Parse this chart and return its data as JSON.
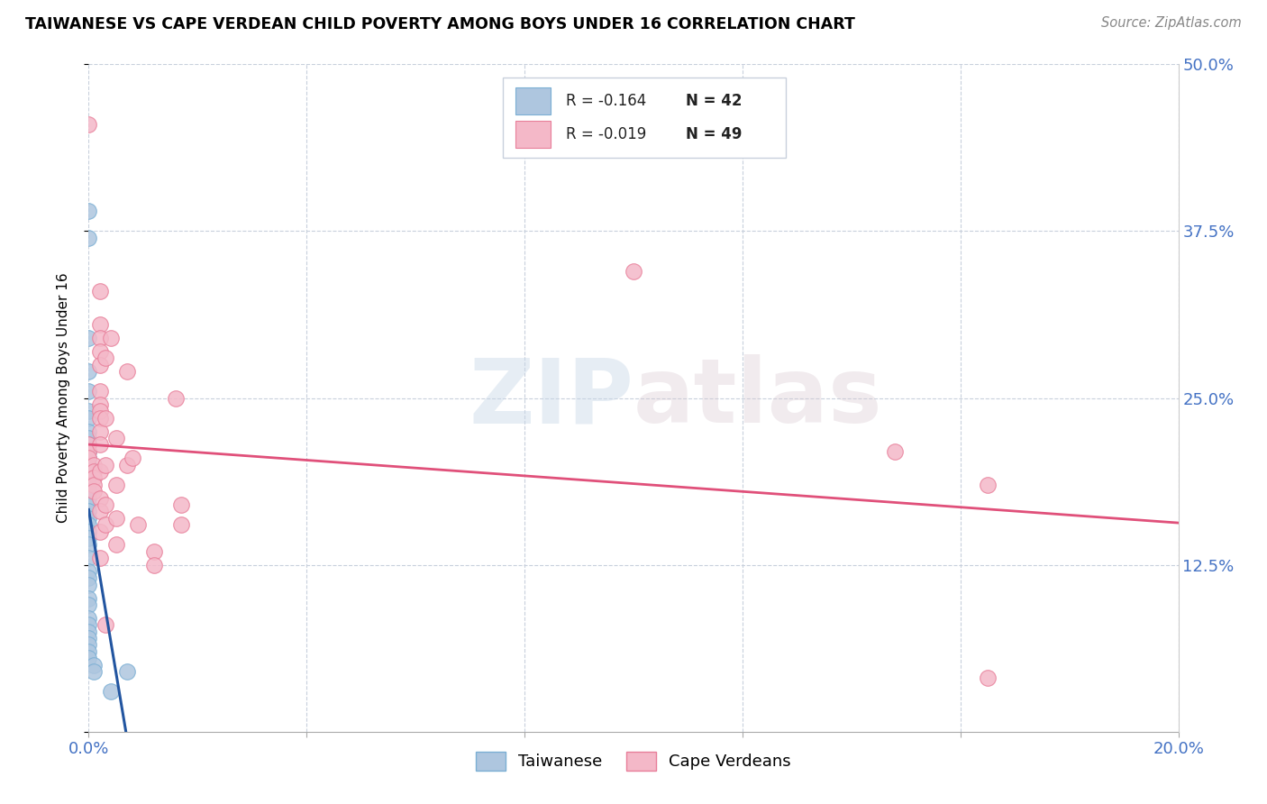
{
  "title": "TAIWANESE VS CAPE VERDEAN CHILD POVERTY AMONG BOYS UNDER 16 CORRELATION CHART",
  "source": "Source: ZipAtlas.com",
  "ylabel": "Child Poverty Among Boys Under 16",
  "xlim": [
    0.0,
    0.2
  ],
  "ylim": [
    0.0,
    0.5
  ],
  "xticks": [
    0.0,
    0.04,
    0.08,
    0.12,
    0.16,
    0.2
  ],
  "xtick_labels": [
    "0.0%",
    "",
    "",
    "",
    "",
    "20.0%"
  ],
  "yticks": [
    0.0,
    0.125,
    0.25,
    0.375,
    0.5
  ],
  "ytick_labels": [
    "",
    "12.5%",
    "25.0%",
    "37.5%",
    "50.0%"
  ],
  "taiwanese_color": "#aec6df",
  "cape_verdean_color": "#f4b8c8",
  "taiwanese_edge": "#7bafd4",
  "cape_verdean_edge": "#e87f9a",
  "trend_taiwanese_color": "#2255a0",
  "trend_cape_verdean_color": "#e0507a",
  "trend_dashed_color": "#b8c4d0",
  "legend_R_tw": "-0.164",
  "legend_N_tw": "42",
  "legend_R_cv": "-0.019",
  "legend_N_cv": "49",
  "watermark": "ZIPatlas",
  "taiwanese_points": [
    [
      0.0,
      0.39
    ],
    [
      0.0,
      0.37
    ],
    [
      0.0,
      0.295
    ],
    [
      0.0,
      0.27
    ],
    [
      0.0,
      0.255
    ],
    [
      0.0,
      0.24
    ],
    [
      0.0,
      0.235
    ],
    [
      0.0,
      0.225
    ],
    [
      0.0,
      0.22
    ],
    [
      0.0,
      0.215
    ],
    [
      0.0,
      0.21
    ],
    [
      0.0,
      0.205
    ],
    [
      0.0,
      0.2
    ],
    [
      0.0,
      0.195
    ],
    [
      0.0,
      0.19
    ],
    [
      0.0,
      0.185
    ],
    [
      0.0,
      0.18
    ],
    [
      0.0,
      0.175
    ],
    [
      0.0,
      0.17
    ],
    [
      0.0,
      0.165
    ],
    [
      0.0,
      0.16
    ],
    [
      0.0,
      0.155
    ],
    [
      0.0,
      0.15
    ],
    [
      0.0,
      0.145
    ],
    [
      0.0,
      0.14
    ],
    [
      0.0,
      0.13
    ],
    [
      0.0,
      0.12
    ],
    [
      0.0,
      0.115
    ],
    [
      0.0,
      0.11
    ],
    [
      0.0,
      0.1
    ],
    [
      0.0,
      0.095
    ],
    [
      0.0,
      0.085
    ],
    [
      0.0,
      0.08
    ],
    [
      0.0,
      0.075
    ],
    [
      0.0,
      0.07
    ],
    [
      0.0,
      0.065
    ],
    [
      0.0,
      0.06
    ],
    [
      0.0,
      0.055
    ],
    [
      0.001,
      0.05
    ],
    [
      0.001,
      0.045
    ],
    [
      0.004,
      0.03
    ],
    [
      0.007,
      0.045
    ]
  ],
  "cape_verdean_points": [
    [
      0.0,
      0.455
    ],
    [
      0.0,
      0.215
    ],
    [
      0.0,
      0.21
    ],
    [
      0.0,
      0.205
    ],
    [
      0.001,
      0.2
    ],
    [
      0.001,
      0.195
    ],
    [
      0.001,
      0.19
    ],
    [
      0.001,
      0.185
    ],
    [
      0.001,
      0.18
    ],
    [
      0.002,
      0.33
    ],
    [
      0.002,
      0.305
    ],
    [
      0.002,
      0.295
    ],
    [
      0.002,
      0.285
    ],
    [
      0.002,
      0.275
    ],
    [
      0.002,
      0.255
    ],
    [
      0.002,
      0.245
    ],
    [
      0.002,
      0.24
    ],
    [
      0.002,
      0.235
    ],
    [
      0.002,
      0.225
    ],
    [
      0.002,
      0.215
    ],
    [
      0.002,
      0.195
    ],
    [
      0.002,
      0.175
    ],
    [
      0.002,
      0.165
    ],
    [
      0.002,
      0.15
    ],
    [
      0.002,
      0.13
    ],
    [
      0.003,
      0.28
    ],
    [
      0.003,
      0.235
    ],
    [
      0.003,
      0.2
    ],
    [
      0.003,
      0.17
    ],
    [
      0.003,
      0.155
    ],
    [
      0.003,
      0.08
    ],
    [
      0.004,
      0.295
    ],
    [
      0.005,
      0.22
    ],
    [
      0.005,
      0.185
    ],
    [
      0.005,
      0.16
    ],
    [
      0.005,
      0.14
    ],
    [
      0.007,
      0.27
    ],
    [
      0.007,
      0.2
    ],
    [
      0.008,
      0.205
    ],
    [
      0.009,
      0.155
    ],
    [
      0.012,
      0.135
    ],
    [
      0.012,
      0.125
    ],
    [
      0.016,
      0.25
    ],
    [
      0.017,
      0.17
    ],
    [
      0.017,
      0.155
    ],
    [
      0.1,
      0.345
    ],
    [
      0.148,
      0.21
    ],
    [
      0.165,
      0.185
    ],
    [
      0.165,
      0.04
    ]
  ]
}
